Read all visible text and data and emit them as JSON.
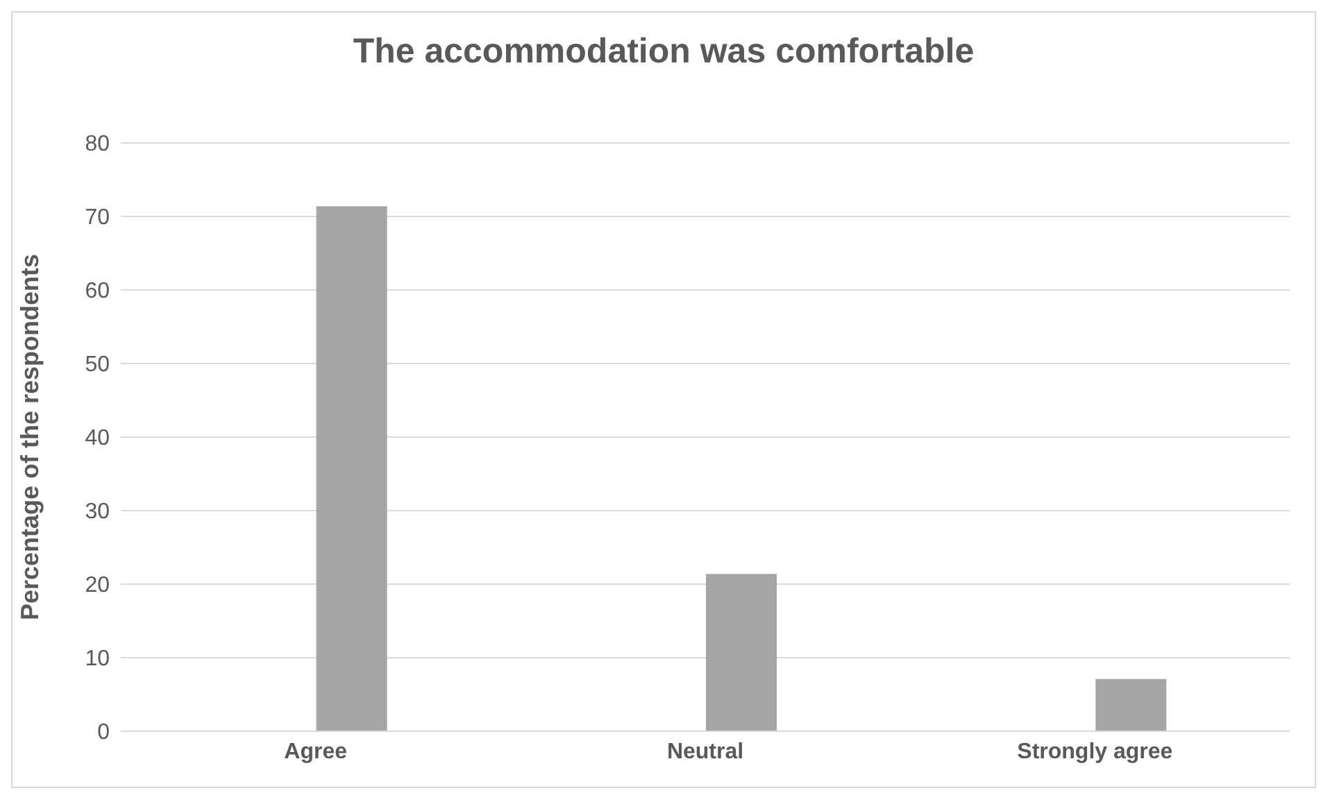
{
  "chart_data": {
    "type": "bar",
    "title": "The accommodation was comfortable",
    "ylabel": "Percentage of the respondents",
    "categories": [
      "Agree",
      "Neutral",
      "Strongly agree"
    ],
    "series": [
      {
        "color": "#4472c4",
        "values": [
          null,
          null,
          null
        ]
      },
      {
        "color": "#a5a5a5",
        "values": [
          71.4,
          21.4,
          7.1
        ]
      }
    ],
    "ylim": [
      0,
      80
    ],
    "yticks": [
      0,
      10,
      20,
      30,
      40,
      50,
      60,
      70,
      80
    ],
    "grid": "y"
  }
}
